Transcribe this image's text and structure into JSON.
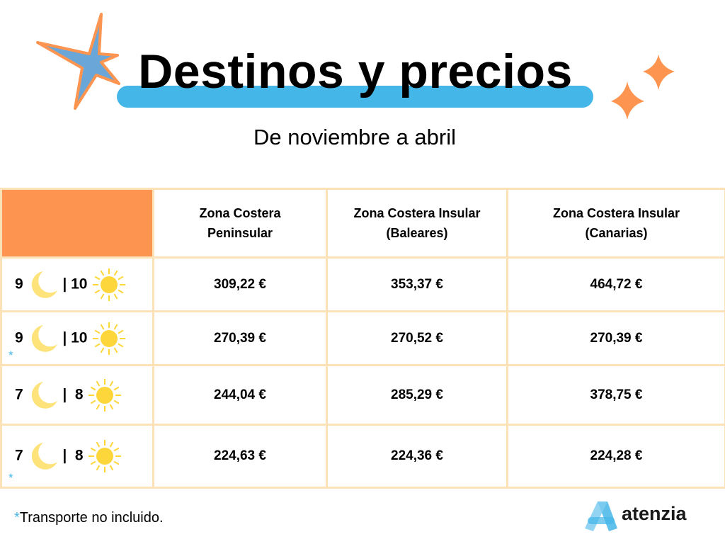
{
  "header": {
    "title": "Destinos y precios",
    "subtitle": "De noviembre a abril"
  },
  "table": {
    "columns": [
      [
        "Zona Costera",
        "Peninsular"
      ],
      [
        "Zona Costera Insular",
        "(Baleares)"
      ],
      [
        "Zona Costera Insular",
        "(Canarias)"
      ]
    ],
    "rows": [
      {
        "nights": "9",
        "days": "| 10",
        "prices": [
          "309,22 €",
          "353,37 €",
          "464,72 €"
        ]
      },
      {
        "nights": "9",
        "days": "| 10",
        "note": "*",
        "prices": [
          "270,39 €",
          "270,52 €",
          "270,39 €"
        ]
      },
      {
        "nights": "7",
        "days": "|  8",
        "prices": [
          "244,04 €",
          "285,29 €",
          "378,75 €"
        ]
      },
      {
        "nights": "7",
        "days": "|  8",
        "note": "*",
        "prices": [
          "224,63 €",
          "224,36 €",
          "224,28 €"
        ]
      }
    ]
  },
  "footer": {
    "note_mark": "*",
    "note_text": "Transporte no incluido.",
    "logo": "atenzia"
  }
}
